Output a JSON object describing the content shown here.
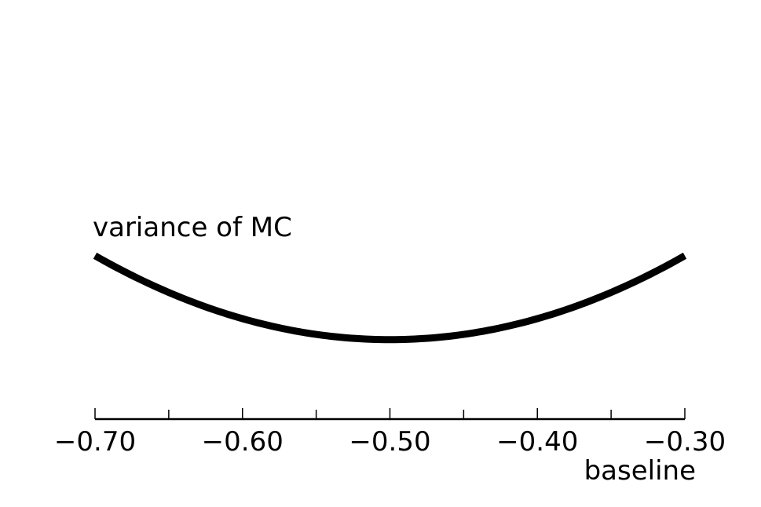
{
  "chart_data": {
    "type": "line",
    "title": "",
    "xlabel": "baseline",
    "ylabel": "",
    "xlim": [
      -0.7,
      -0.3
    ],
    "ylim": [
      0,
      1
    ],
    "x_ticks_major": [
      "−0.70",
      "−0.60",
      "−0.50",
      "−0.40",
      "−0.30"
    ],
    "x_ticks_major_values": [
      -0.7,
      -0.6,
      -0.5,
      -0.4,
      -0.3
    ],
    "x_ticks_minor_values": [
      -0.65,
      -0.55,
      -0.45,
      -0.35
    ],
    "grid": false,
    "series": [
      {
        "name": "variance of MC",
        "color": "#000000",
        "x": [
          -0.7,
          -0.65,
          -0.6,
          -0.55,
          -0.5,
          -0.45,
          -0.4,
          -0.35,
          -0.3
        ],
        "y": [
          0.405,
          0.314,
          0.249,
          0.21,
          0.197,
          0.21,
          0.249,
          0.314,
          0.405
        ]
      }
    ]
  }
}
